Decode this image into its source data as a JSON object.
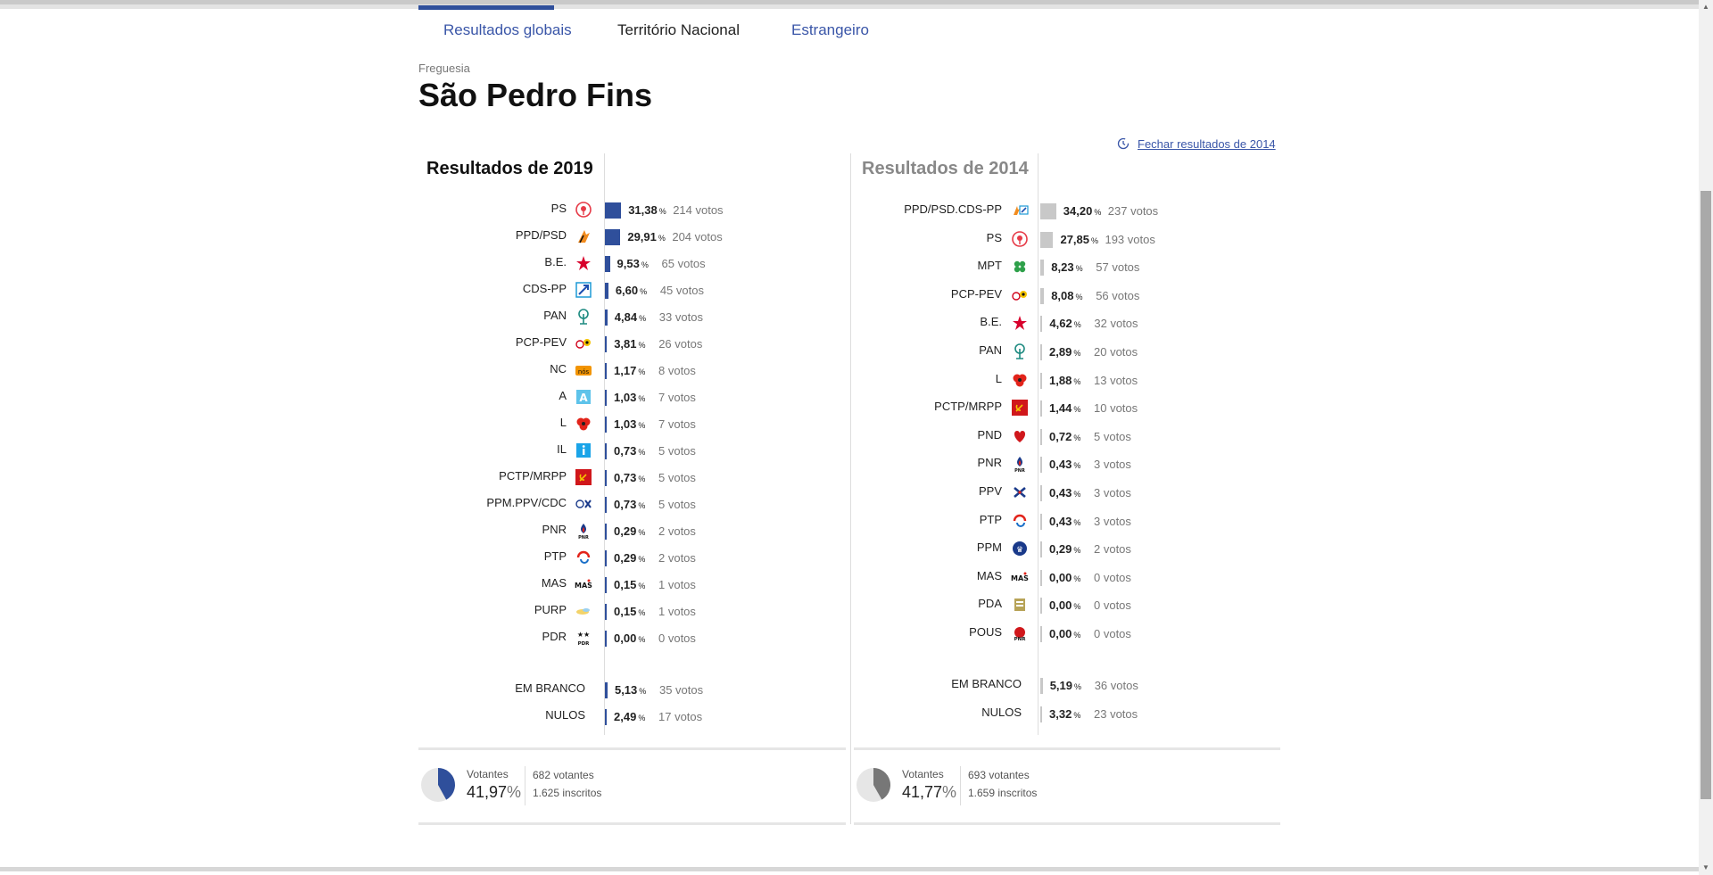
{
  "tabs": [
    {
      "label": "Resultados globais",
      "active": true
    },
    {
      "label": "Território Nacional",
      "active": false
    },
    {
      "label": "Estrangeiro",
      "active": false
    }
  ],
  "crumb": "Freguesia",
  "title": "São Pedro Fins",
  "close_link": "Fechar resultados de 2014",
  "panel2019": {
    "heading": "Resultados de 2019",
    "parties": [
      {
        "name": "PS",
        "pct": "31,38",
        "votes": "214 votos",
        "share": 31.38,
        "icon": "ps-rose-icon"
      },
      {
        "name": "PPD/PSD",
        "pct": "29,91",
        "votes": "204 votos",
        "share": 29.91,
        "icon": "psd-arrow-icon"
      },
      {
        "name": "B.E.",
        "pct": "9,53",
        "votes": "65 votos",
        "share": 9.53,
        "icon": "be-star-icon"
      },
      {
        "name": "CDS-PP",
        "pct": "6,60",
        "votes": "45 votos",
        "share": 6.6,
        "icon": "cds-arrow-icon"
      },
      {
        "name": "PAN",
        "pct": "4,84",
        "votes": "33 votos",
        "share": 4.84,
        "icon": "pan-tree-icon"
      },
      {
        "name": "PCP-PEV",
        "pct": "3,81",
        "votes": "26 votos",
        "share": 3.81,
        "icon": "pcp-pev-icon"
      },
      {
        "name": "NC",
        "pct": "1,17",
        "votes": "8 votos",
        "share": 1.17,
        "icon": "nc-icon"
      },
      {
        "name": "A",
        "pct": "1,03",
        "votes": "7 votos",
        "share": 1.03,
        "icon": "a-icon"
      },
      {
        "name": "L",
        "pct": "1,03",
        "votes": "7 votos",
        "share": 1.03,
        "icon": "poppy-icon"
      },
      {
        "name": "IL",
        "pct": "0,73",
        "votes": "5 votos",
        "share": 0.73,
        "icon": "il-icon"
      },
      {
        "name": "PCTP/MRPP",
        "pct": "0,73",
        "votes": "5 votos",
        "share": 0.73,
        "icon": "pctp-icon"
      },
      {
        "name": "PPM.PPV/CDC",
        "pct": "0,73",
        "votes": "5 votos",
        "share": 0.73,
        "icon": "ppm-ppv-icon"
      },
      {
        "name": "PNR",
        "pct": "0,29",
        "votes": "2 votos",
        "share": 0.29,
        "icon": "pnr-flame-icon"
      },
      {
        "name": "PTP",
        "pct": "0,29",
        "votes": "2 votos",
        "share": 0.29,
        "icon": "ptp-icon"
      },
      {
        "name": "MAS",
        "pct": "0,15",
        "votes": "1 votos",
        "share": 0.15,
        "icon": "mas-icon"
      },
      {
        "name": "PURP",
        "pct": "0,15",
        "votes": "1 votos",
        "share": 0.15,
        "icon": "purp-icon"
      },
      {
        "name": "PDR",
        "pct": "0,00",
        "votes": "0 votos",
        "share": 0.0,
        "icon": "pdr-stars-icon"
      }
    ],
    "extra": [
      {
        "name": "EM BRANCO",
        "pct": "5,13",
        "votes": "35 votos",
        "share": 5.13
      },
      {
        "name": "NULOS",
        "pct": "2,49",
        "votes": "17 votos",
        "share": 2.49
      }
    ],
    "votantes_label": "Votantes",
    "votantes_pct": "41,97",
    "votantes_share": 41.97,
    "votantes": "682 votantes",
    "inscritos": "1.625 inscritos",
    "bar_color": "#2f4f9b"
  },
  "panel2014": {
    "heading": "Resultados de 2014",
    "parties": [
      {
        "name": "PPD/PSD.CDS-PP",
        "pct": "34,20",
        "votes": "237 votos",
        "share": 34.2,
        "icon": "paf-icon"
      },
      {
        "name": "PS",
        "pct": "27,85",
        "votes": "193 votos",
        "share": 27.85,
        "icon": "ps-rose-icon"
      },
      {
        "name": "MPT",
        "pct": "8,23",
        "votes": "57 votos",
        "share": 8.23,
        "icon": "mpt-clover-icon"
      },
      {
        "name": "PCP-PEV",
        "pct": "8,08",
        "votes": "56 votos",
        "share": 8.08,
        "icon": "pcp-pev-icon"
      },
      {
        "name": "B.E.",
        "pct": "4,62",
        "votes": "32 votos",
        "share": 4.62,
        "icon": "be-star-icon"
      },
      {
        "name": "PAN",
        "pct": "2,89",
        "votes": "20 votos",
        "share": 2.89,
        "icon": "pan-tree-icon"
      },
      {
        "name": "L",
        "pct": "1,88",
        "votes": "13 votos",
        "share": 1.88,
        "icon": "poppy-icon"
      },
      {
        "name": "PCTP/MRPP",
        "pct": "1,44",
        "votes": "10 votos",
        "share": 1.44,
        "icon": "pctp-icon"
      },
      {
        "name": "PND",
        "pct": "0,72",
        "votes": "5 votos",
        "share": 0.72,
        "icon": "pnd-heart-icon"
      },
      {
        "name": "PNR",
        "pct": "0,43",
        "votes": "3 votos",
        "share": 0.43,
        "icon": "pnr-flame-icon"
      },
      {
        "name": "PPV",
        "pct": "0,43",
        "votes": "3 votos",
        "share": 0.43,
        "icon": "ppv-icon"
      },
      {
        "name": "PTP",
        "pct": "0,43",
        "votes": "3 votos",
        "share": 0.43,
        "icon": "ptp-icon"
      },
      {
        "name": "PPM",
        "pct": "0,29",
        "votes": "2 votos",
        "share": 0.29,
        "icon": "ppm-icon"
      },
      {
        "name": "MAS",
        "pct": "0,00",
        "votes": "0 votos",
        "share": 0.0,
        "icon": "mas-icon"
      },
      {
        "name": "PDA",
        "pct": "0,00",
        "votes": "0 votos",
        "share": 0.0,
        "icon": "pda-icon"
      },
      {
        "name": "POUS",
        "pct": "0,00",
        "votes": "0 votos",
        "share": 0.0,
        "icon": "pous-icon"
      }
    ],
    "extra": [
      {
        "name": "EM BRANCO",
        "pct": "5,19",
        "votes": "36 votos",
        "share": 5.19
      },
      {
        "name": "NULOS",
        "pct": "3,32",
        "votes": "23 votos",
        "share": 3.32
      }
    ],
    "votantes_label": "Votantes",
    "votantes_pct": "41,77",
    "votantes_share": 41.77,
    "votantes": "693 votantes",
    "inscritos": "1.659 inscritos",
    "bar_color": "#c8c8c8"
  },
  "pct_suffix": "%"
}
